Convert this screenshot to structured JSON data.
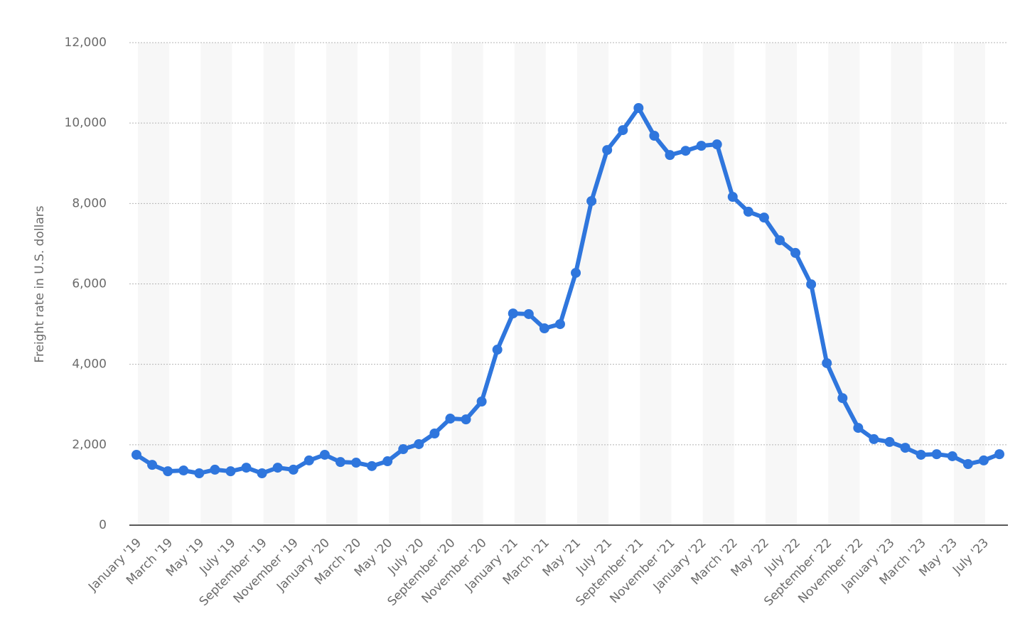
{
  "chart_data": {
    "type": "line",
    "y_label": "Freight rate in U.S. dollars",
    "categories": [
      "January '19",
      null,
      "March '19",
      null,
      "May '19",
      null,
      "July '19",
      null,
      "September '19",
      null,
      "November '19",
      null,
      "January '20",
      null,
      "March '20",
      null,
      "May '20",
      null,
      "July '20",
      null,
      "September '20",
      null,
      "November '20",
      null,
      "January '21",
      null,
      "March '21",
      null,
      "May '21",
      null,
      "July '21",
      null,
      "September '21",
      null,
      "November '21",
      null,
      "January '22",
      null,
      "March '22",
      null,
      "May '22",
      null,
      "July '22",
      null,
      "September '22",
      null,
      "November '22",
      null,
      "January '23",
      null,
      "March '23",
      null,
      "May '23",
      null,
      "July '23",
      null
    ],
    "series": [
      {
        "name": "Freight rate",
        "color": "#2f76dd",
        "values": [
          1750,
          1500,
          1340,
          1360,
          1290,
          1380,
          1340,
          1430,
          1290,
          1430,
          1380,
          1610,
          1750,
          1570,
          1555,
          1470,
          1590,
          1890,
          2015,
          2280,
          2650,
          2630,
          3075,
          4365,
          5265,
          5250,
          4895,
          5000,
          6275,
          8060,
          9330,
          9825,
          10375,
          9685,
          9205,
          9310,
          9435,
          9470,
          8165,
          7795,
          7650,
          7085,
          6770,
          5990,
          4030,
          3160,
          2420,
          2140,
          2070,
          1925,
          1750,
          1765,
          1715,
          1520,
          1610,
          1765
        ]
      }
    ],
    "ylim": [
      0,
      12000
    ],
    "yticks": [
      0,
      {
        "value": 2000,
        "label": "2,000"
      },
      {
        "value": 4000,
        "label": "4,000"
      },
      {
        "value": 6000,
        "label": "6,000"
      },
      {
        "value": 8000,
        "label": "8,000"
      },
      {
        "value": 10000,
        "label": "10,000"
      },
      {
        "value": 12000,
        "label": "12,000"
      }
    ],
    "grid": true
  }
}
